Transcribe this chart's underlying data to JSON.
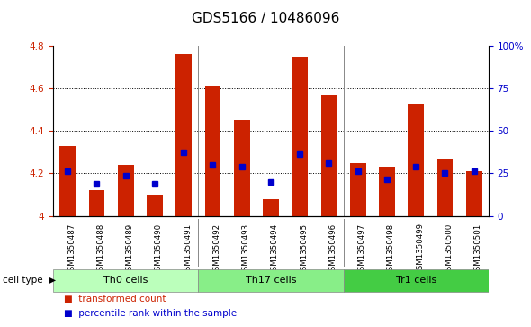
{
  "title": "GDS5166 / 10486096",
  "categories": [
    "GSM1350487",
    "GSM1350488",
    "GSM1350489",
    "GSM1350490",
    "GSM1350491",
    "GSM1350492",
    "GSM1350493",
    "GSM1350494",
    "GSM1350495",
    "GSM1350496",
    "GSM1350497",
    "GSM1350498",
    "GSM1350499",
    "GSM1350500",
    "GSM1350501"
  ],
  "bar_values": [
    4.33,
    4.12,
    4.24,
    4.1,
    4.76,
    4.61,
    4.45,
    4.08,
    4.75,
    4.57,
    4.25,
    4.23,
    4.53,
    4.27,
    4.21
  ],
  "blue_dot_values": [
    4.21,
    4.15,
    4.19,
    4.15,
    4.3,
    4.24,
    4.23,
    4.16,
    4.29,
    4.25,
    4.21,
    4.17,
    4.23,
    4.2,
    4.21
  ],
  "bar_color": "#cc2200",
  "dot_color": "#0000cc",
  "ymin": 4.0,
  "ymax": 4.8,
  "yticks": [
    4.0,
    4.2,
    4.4,
    4.6,
    4.8
  ],
  "ytick_labels_left": [
    "4",
    "4.2",
    "4.4",
    "4.6",
    "4.8"
  ],
  "right_yticks": [
    0,
    25,
    50,
    75,
    100
  ],
  "right_ytick_labels": [
    "0",
    "25",
    "50",
    "75",
    "100%"
  ],
  "grid_lines": [
    4.2,
    4.4,
    4.6
  ],
  "group_separators": [
    4.5,
    9.5
  ],
  "groups": [
    {
      "label": "Th0 cells",
      "start": 0,
      "end": 5,
      "color": "#bbffbb"
    },
    {
      "label": "Th17 cells",
      "start": 5,
      "end": 10,
      "color": "#88ee88"
    },
    {
      "label": "Tr1 cells",
      "start": 10,
      "end": 15,
      "color": "#44cc44"
    }
  ],
  "bar_width": 0.55,
  "title_fontsize": 11,
  "tick_label_fontsize": 7.5,
  "group_label_fontsize": 8,
  "legend_fontsize": 7.5,
  "xlabel_fontsize": 6.2
}
